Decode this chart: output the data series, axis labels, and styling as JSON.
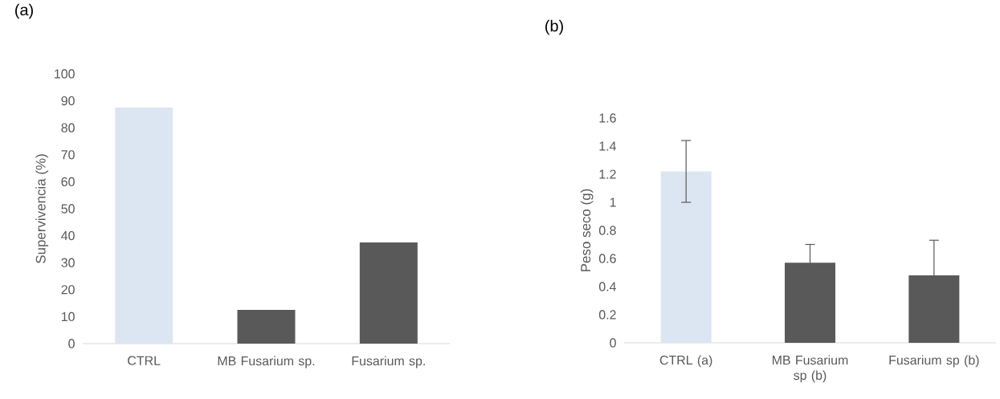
{
  "chart_data": [
    {
      "type": "bar",
      "title": "(a)",
      "ylabel": "Supervivencia (%)",
      "categories": [
        "CTRL",
        "MB Fusarium sp.",
        "Fusarium sp."
      ],
      "values": [
        87.5,
        12.5,
        37.5
      ],
      "colors": [
        "#dce6f2",
        "#595959",
        "#595959"
      ],
      "ylim": [
        0,
        100
      ],
      "yticks": [
        0,
        10,
        20,
        30,
        40,
        50,
        60,
        70,
        80,
        90,
        100
      ]
    },
    {
      "type": "bar",
      "title": "(b)",
      "ylabel": "Peso seco (g)",
      "categories": [
        "CTRL  (a)",
        "MB Fusarium sp (b)",
        "Fusarium sp (b)"
      ],
      "values": [
        1.22,
        0.57,
        0.48
      ],
      "errors": [
        0.22,
        0.13,
        0.25
      ],
      "colors": [
        "#dce6f2",
        "#595959",
        "#595959"
      ],
      "ylim": [
        0,
        1.6
      ],
      "yticks": [
        0,
        0.2,
        0.4,
        0.6,
        0.8,
        1,
        1.2,
        1.4,
        1.6
      ]
    }
  ]
}
